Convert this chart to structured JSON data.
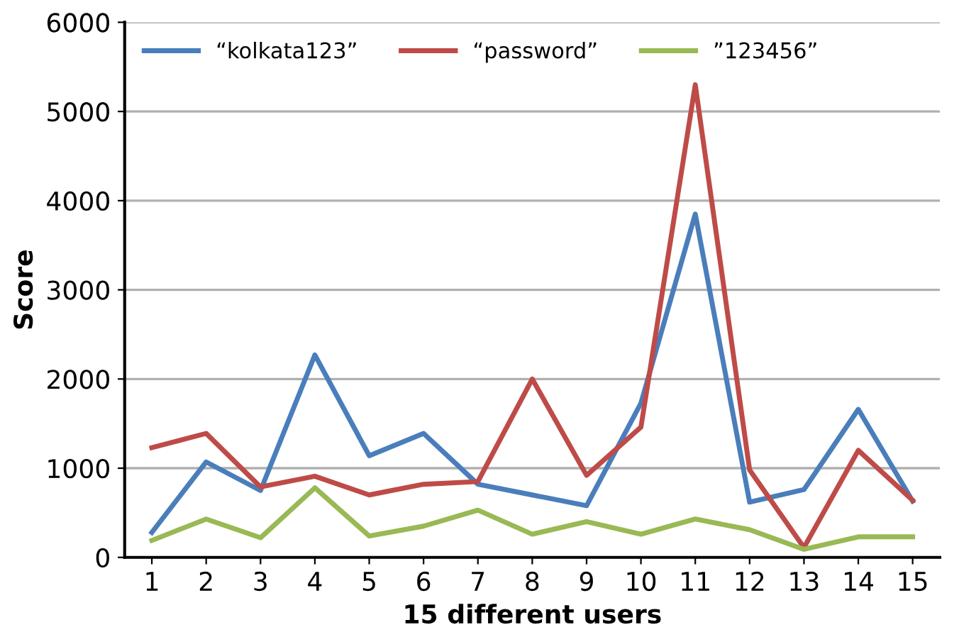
{
  "chart_data": {
    "type": "line",
    "xlabel": "15 different users",
    "ylabel": "Score",
    "categories": [
      "1",
      "2",
      "3",
      "4",
      "5",
      "6",
      "7",
      "8",
      "9",
      "10",
      "11",
      "12",
      "13",
      "14",
      "15"
    ],
    "series": [
      {
        "name": "“kolkata123”",
        "color": "#4a7ebb",
        "values": [
          280,
          1070,
          750,
          2270,
          1140,
          1390,
          820,
          700,
          580,
          1730,
          3850,
          620,
          760,
          1660,
          630
        ]
      },
      {
        "name": "“password”",
        "color": "#be4b48",
        "values": [
          1230,
          1390,
          790,
          910,
          700,
          820,
          850,
          2000,
          920,
          1460,
          5300,
          980,
          110,
          1200,
          640
        ]
      },
      {
        "name": "”123456”",
        "color": "#98b954",
        "values": [
          190,
          430,
          220,
          780,
          240,
          350,
          530,
          260,
          400,
          260,
          430,
          310,
          90,
          230,
          230
        ]
      }
    ],
    "ylim": [
      0,
      6000
    ],
    "yticks": [
      0,
      1000,
      2000,
      3000,
      4000,
      5000,
      6000
    ],
    "grid": "y",
    "legend": "top left",
    "marker": "none",
    "line_style": "solid"
  }
}
